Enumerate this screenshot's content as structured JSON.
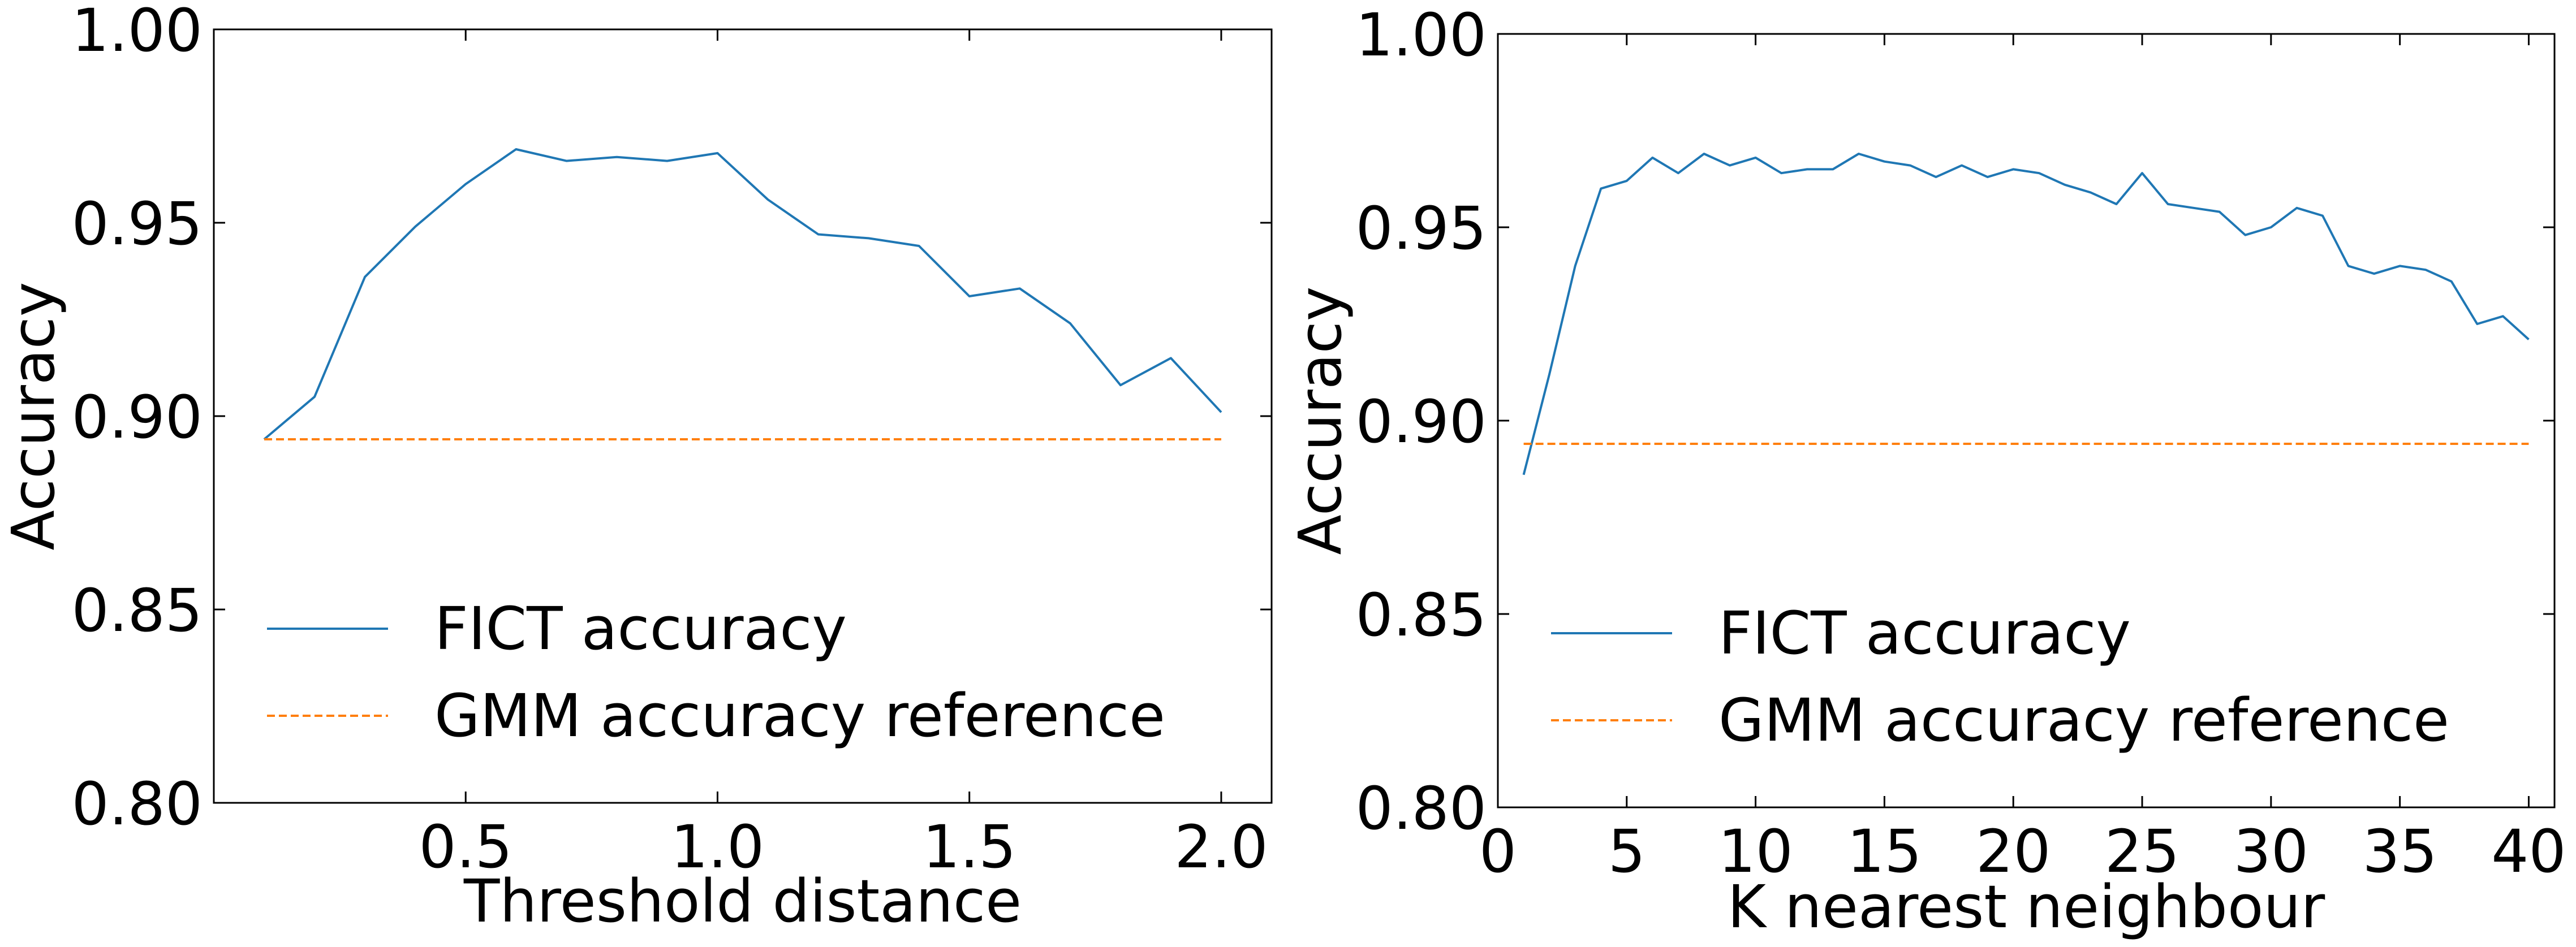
{
  "chart_data": [
    {
      "type": "line",
      "xlabel": "Threshold distance",
      "ylabel": "Accuracy",
      "xlim": [
        0.0,
        2.1
      ],
      "ylim": [
        0.8,
        1.0
      ],
      "xticks": [
        "0.5",
        "1.0",
        "1.5",
        "2.0"
      ],
      "yticks": [
        "0.80",
        "0.85",
        "0.90",
        "0.95",
        "1.00"
      ],
      "grid": false,
      "legend_position": "lower-left",
      "series": [
        {
          "name": "FICT accuracy",
          "style": "solid",
          "color": "#1f77b4",
          "x": [
            0.1,
            0.2,
            0.3,
            0.4,
            0.5,
            0.6,
            0.7,
            0.8,
            0.9,
            1.0,
            1.1,
            1.2,
            1.3,
            1.4,
            1.5,
            1.6,
            1.7,
            1.8,
            1.9,
            2.0
          ],
          "y": [
            0.894,
            0.905,
            0.936,
            0.949,
            0.96,
            0.969,
            0.966,
            0.967,
            0.966,
            0.968,
            0.956,
            0.947,
            0.946,
            0.944,
            0.931,
            0.933,
            0.924,
            0.908,
            0.915,
            0.901
          ]
        },
        {
          "name": "GMM accuracy reference",
          "style": "dashed",
          "color": "#ff7f0e",
          "x": [
            0.1,
            2.0
          ],
          "y": [
            0.894,
            0.894
          ]
        }
      ]
    },
    {
      "type": "line",
      "xlabel": "K nearest neighbour",
      "ylabel": "Accuracy",
      "xlim": [
        0,
        41
      ],
      "ylim": [
        0.8,
        1.0
      ],
      "xticks": [
        "0",
        "5",
        "10",
        "15",
        "20",
        "25",
        "30",
        "35",
        "40"
      ],
      "yticks": [
        "0.80",
        "0.85",
        "0.90",
        "0.95",
        "1.00"
      ],
      "grid": false,
      "legend_position": "lower-left",
      "series": [
        {
          "name": "FICT accuracy",
          "style": "solid",
          "color": "#1f77b4",
          "x": [
            1,
            2,
            3,
            4,
            5,
            6,
            7,
            8,
            9,
            10,
            11,
            12,
            13,
            14,
            15,
            16,
            17,
            18,
            19,
            20,
            21,
            22,
            23,
            24,
            25,
            26,
            27,
            28,
            29,
            30,
            31,
            32,
            33,
            34,
            35,
            36,
            37,
            38,
            39,
            40
          ],
          "y": [
            0.886,
            0.912,
            0.94,
            0.96,
            0.962,
            0.968,
            0.964,
            0.969,
            0.966,
            0.968,
            0.964,
            0.965,
            0.965,
            0.969,
            0.967,
            0.966,
            0.963,
            0.966,
            0.963,
            0.965,
            0.964,
            0.961,
            0.959,
            0.956,
            0.964,
            0.956,
            0.955,
            0.954,
            0.948,
            0.95,
            0.955,
            0.953,
            0.94,
            0.938,
            0.94,
            0.939,
            0.936,
            0.925,
            0.927,
            0.921
          ]
        },
        {
          "name": "GMM accuracy reference",
          "style": "dashed",
          "color": "#ff7f0e",
          "x": [
            1,
            40
          ],
          "y": [
            0.894,
            0.894
          ]
        }
      ]
    }
  ]
}
